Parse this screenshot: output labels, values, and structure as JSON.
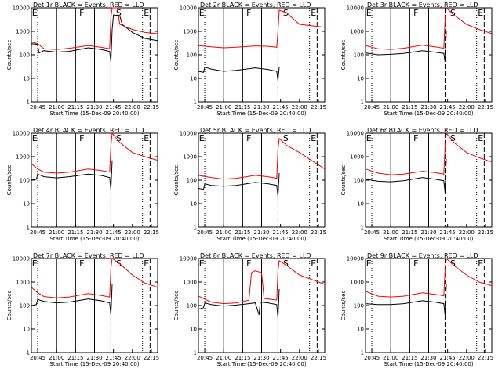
{
  "page": {
    "background": "#ffffff",
    "foreground": "#000000"
  },
  "shared": {
    "xlabel": "Start Time (15-Dec-09 20:40:00)",
    "ylabel": "Counts/sec",
    "xtick_labels": [
      "20:45",
      "21:00",
      "21:15",
      "21:30",
      "21:45",
      "22:00",
      "22:15"
    ],
    "ytick_labels": [
      "1",
      "10",
      "100",
      "1000",
      "10000"
    ],
    "markers": [
      "E",
      "F",
      "S",
      "E"
    ],
    "black_color": "#000000",
    "red_color": "#ff0000"
  },
  "chart_data": [
    {
      "type": "line",
      "title": "Det 1r BLACK = Events, RED = LLD",
      "xlim": [
        "20:40",
        "22:20"
      ],
      "ylim": [
        1,
        10000
      ],
      "yscale": "log",
      "grid": false,
      "series": [
        {
          "color": "black",
          "values": [
            [
              0,
              300
            ],
            [
              5,
              280
            ],
            [
              6,
              120
            ],
            [
              10,
              150
            ],
            [
              20,
              130
            ],
            [
              30,
              140
            ],
            [
              45,
              200
            ],
            [
              55,
              170
            ],
            [
              62,
              140
            ],
            [
              63,
              50
            ],
            [
              64,
              1200
            ],
            [
              65,
              5000
            ],
            [
              70,
              4500
            ],
            [
              72,
              2000
            ],
            [
              80,
              900
            ],
            [
              90,
              500
            ],
            [
              100,
              400
            ]
          ]
        },
        {
          "color": "red",
          "values": [
            [
              0,
              350
            ],
            [
              5,
              300
            ],
            [
              10,
              180
            ],
            [
              20,
              170
            ],
            [
              30,
              190
            ],
            [
              45,
              250
            ],
            [
              55,
              210
            ],
            [
              62,
              180
            ],
            [
              63,
              4000
            ],
            [
              64,
              10000
            ],
            [
              68,
              10000
            ],
            [
              70,
              2000
            ],
            [
              80,
              1200
            ],
            [
              90,
              900
            ],
            [
              100,
              800
            ]
          ]
        }
      ]
    },
    {
      "type": "line",
      "title": "Det 2r BLACK = Events, RED = LLD",
      "xlim": [
        "20:40",
        "22:20"
      ],
      "ylim": [
        1,
        10000
      ],
      "yscale": "log",
      "grid": false,
      "series": [
        {
          "color": "black",
          "values": [
            [
              0,
              20
            ],
            [
              4,
              18
            ],
            [
              5,
              30
            ],
            [
              10,
              25
            ],
            [
              20,
              20
            ],
            [
              30,
              22
            ],
            [
              45,
              28
            ],
            [
              55,
              24
            ],
            [
              62,
              20
            ],
            [
              63,
              8
            ],
            [
              64,
              30
            ]
          ]
        },
        {
          "color": "red",
          "values": [
            [
              0,
              250
            ],
            [
              10,
              220
            ],
            [
              20,
              200
            ],
            [
              30,
              210
            ],
            [
              45,
              240
            ],
            [
              55,
              230
            ],
            [
              62,
              210
            ],
            [
              63,
              1000
            ],
            [
              64,
              8000
            ],
            [
              70,
              6000
            ],
            [
              80,
              2000
            ],
            [
              100,
              1500
            ]
          ]
        }
      ]
    },
    {
      "type": "line",
      "title": "Det 3r BLACK = Events, RED = LLD",
      "xlim": [
        "20:40",
        "22:20"
      ],
      "ylim": [
        1,
        10000
      ],
      "yscale": "log",
      "grid": false,
      "series": [
        {
          "color": "black",
          "values": [
            [
              0,
              120
            ],
            [
              10,
              100
            ],
            [
              20,
              105
            ],
            [
              30,
              115
            ],
            [
              45,
              150
            ],
            [
              55,
              130
            ],
            [
              62,
              115
            ],
            [
              63,
              50
            ],
            [
              64,
              1000
            ]
          ]
        },
        {
          "color": "red",
          "values": [
            [
              0,
              250
            ],
            [
              10,
              180
            ],
            [
              20,
              170
            ],
            [
              30,
              190
            ],
            [
              45,
              260
            ],
            [
              55,
              220
            ],
            [
              62,
              190
            ],
            [
              63,
              3000
            ],
            [
              64,
              10000
            ],
            [
              70,
              5000
            ],
            [
              80,
              2000
            ],
            [
              90,
              1200
            ],
            [
              100,
              800
            ]
          ]
        }
      ]
    },
    {
      "type": "line",
      "title": "Det 4r BLACK = Events, RED = LLD",
      "xlim": [
        "20:40",
        "22:20"
      ],
      "ylim": [
        1,
        10000
      ],
      "yscale": "log",
      "grid": false,
      "series": [
        {
          "color": "black",
          "values": [
            [
              0,
              100
            ],
            [
              4,
              110
            ],
            [
              5,
              180
            ],
            [
              10,
              140
            ],
            [
              20,
              125
            ],
            [
              30,
              140
            ],
            [
              45,
              180
            ],
            [
              55,
              160
            ],
            [
              62,
              130
            ],
            [
              63,
              40
            ],
            [
              64,
              700
            ]
          ]
        },
        {
          "color": "red",
          "values": [
            [
              0,
              500
            ],
            [
              5,
              300
            ],
            [
              10,
              220
            ],
            [
              20,
              200
            ],
            [
              30,
              220
            ],
            [
              45,
              300
            ],
            [
              55,
              260
            ],
            [
              62,
              220
            ],
            [
              63,
              3000
            ],
            [
              64,
              10000
            ],
            [
              70,
              4000
            ],
            [
              80,
              1500
            ],
            [
              90,
              1000
            ],
            [
              100,
              700
            ]
          ]
        }
      ]
    },
    {
      "type": "line",
      "title": "Det 5r BLACK = Events, RED = LLD",
      "xlim": [
        "20:40",
        "22:20"
      ],
      "ylim": [
        1,
        10000
      ],
      "yscale": "log",
      "grid": false,
      "series": [
        {
          "color": "black",
          "values": [
            [
              0,
              45
            ],
            [
              4,
              40
            ],
            [
              5,
              70
            ],
            [
              10,
              60
            ],
            [
              20,
              55
            ],
            [
              30,
              60
            ],
            [
              45,
              80
            ],
            [
              55,
              70
            ],
            [
              62,
              60
            ],
            [
              63,
              20
            ],
            [
              64,
              200
            ]
          ]
        },
        {
          "color": "red",
          "values": [
            [
              0,
              160
            ],
            [
              10,
              130
            ],
            [
              20,
              110
            ],
            [
              30,
              120
            ],
            [
              45,
              160
            ],
            [
              55,
              140
            ],
            [
              62,
              120
            ],
            [
              63,
              2000
            ],
            [
              64,
              6000
            ],
            [
              70,
              3000
            ],
            [
              80,
              1500
            ],
            [
              100,
              300
            ]
          ]
        }
      ]
    },
    {
      "type": "line",
      "title": "Det 6r BLACK = Events, RED = LLD",
      "xlim": [
        "20:40",
        "22:20"
      ],
      "ylim": [
        1,
        10000
      ],
      "yscale": "log",
      "grid": false,
      "series": [
        {
          "color": "black",
          "values": [
            [
              0,
              110
            ],
            [
              10,
              90
            ],
            [
              20,
              85
            ],
            [
              30,
              95
            ],
            [
              45,
              130
            ],
            [
              55,
              110
            ],
            [
              62,
              95
            ],
            [
              63,
              30
            ],
            [
              64,
              800
            ]
          ]
        },
        {
          "color": "red",
          "values": [
            [
              0,
              300
            ],
            [
              10,
              200
            ],
            [
              20,
              170
            ],
            [
              30,
              180
            ],
            [
              45,
              240
            ],
            [
              55,
              210
            ],
            [
              62,
              180
            ],
            [
              63,
              2500
            ],
            [
              64,
              10000
            ],
            [
              70,
              4000
            ],
            [
              80,
              1500
            ],
            [
              90,
              900
            ],
            [
              100,
              600
            ]
          ]
        }
      ]
    },
    {
      "type": "line",
      "title": "Det 7r BLACK = Events, RED = LLD",
      "xlim": [
        "20:40",
        "22:20"
      ],
      "ylim": [
        1,
        10000
      ],
      "yscale": "log",
      "grid": false,
      "series": [
        {
          "color": "black",
          "values": [
            [
              0,
              100
            ],
            [
              4,
              110
            ],
            [
              5,
              180
            ],
            [
              10,
              150
            ],
            [
              20,
              130
            ],
            [
              30,
              140
            ],
            [
              45,
              190
            ],
            [
              55,
              160
            ],
            [
              62,
              130
            ],
            [
              63,
              40
            ],
            [
              64,
              800
            ]
          ]
        },
        {
          "color": "red",
          "values": [
            [
              0,
              600
            ],
            [
              5,
              350
            ],
            [
              10,
              240
            ],
            [
              20,
              210
            ],
            [
              30,
              230
            ],
            [
              45,
              320
            ],
            [
              55,
              270
            ],
            [
              62,
              230
            ],
            [
              63,
              4000
            ],
            [
              64,
              10000
            ],
            [
              70,
              6000
            ],
            [
              80,
              2000
            ],
            [
              90,
              900
            ],
            [
              100,
              600
            ]
          ]
        }
      ]
    },
    {
      "type": "line",
      "title": "Det 8r BLACK = Events, RED = LLD",
      "xlim": [
        "20:40",
        "22:20"
      ],
      "ylim": [
        1,
        10000
      ],
      "yscale": "log",
      "grid": false,
      "series": [
        {
          "color": "black",
          "values": [
            [
              0,
              70
            ],
            [
              4,
              80
            ],
            [
              5,
              130
            ],
            [
              10,
              110
            ],
            [
              20,
              95
            ],
            [
              30,
              105
            ],
            [
              40,
              120
            ],
            [
              45,
              130
            ],
            [
              48,
              40
            ],
            [
              49,
              140
            ],
            [
              55,
              130
            ],
            [
              62,
              110
            ],
            [
              63,
              30
            ],
            [
              64,
              500
            ]
          ]
        },
        {
          "color": "red",
          "values": [
            [
              0,
              250
            ],
            [
              10,
              140
            ],
            [
              20,
              120
            ],
            [
              30,
              130
            ],
            [
              40,
              170
            ],
            [
              42,
              2500
            ],
            [
              45,
              3000
            ],
            [
              50,
              2500
            ],
            [
              52,
              200
            ],
            [
              55,
              190
            ],
            [
              62,
              170
            ],
            [
              63,
              3000
            ],
            [
              64,
              8000
            ],
            [
              70,
              5000
            ],
            [
              80,
              2000
            ],
            [
              100,
              800
            ]
          ]
        }
      ]
    },
    {
      "type": "line",
      "title": "Det 9r BLACK = Events, RED = LLD",
      "xlim": [
        "20:40",
        "22:20"
      ],
      "ylim": [
        1,
        10000
      ],
      "yscale": "log",
      "grid": false,
      "series": [
        {
          "color": "black",
          "values": [
            [
              0,
              120
            ],
            [
              10,
              110
            ],
            [
              20,
              110
            ],
            [
              30,
              120
            ],
            [
              45,
              160
            ],
            [
              55,
              140
            ],
            [
              62,
              120
            ],
            [
              63,
              40
            ],
            [
              64,
              800
            ]
          ]
        },
        {
          "color": "red",
          "values": [
            [
              0,
              400
            ],
            [
              10,
              250
            ],
            [
              20,
              230
            ],
            [
              30,
              250
            ],
            [
              45,
              350
            ],
            [
              55,
              300
            ],
            [
              62,
              260
            ],
            [
              63,
              3000
            ],
            [
              64,
              10000
            ],
            [
              70,
              5000
            ],
            [
              80,
              2000
            ],
            [
              90,
              1000
            ],
            [
              100,
              700
            ]
          ]
        }
      ]
    }
  ]
}
